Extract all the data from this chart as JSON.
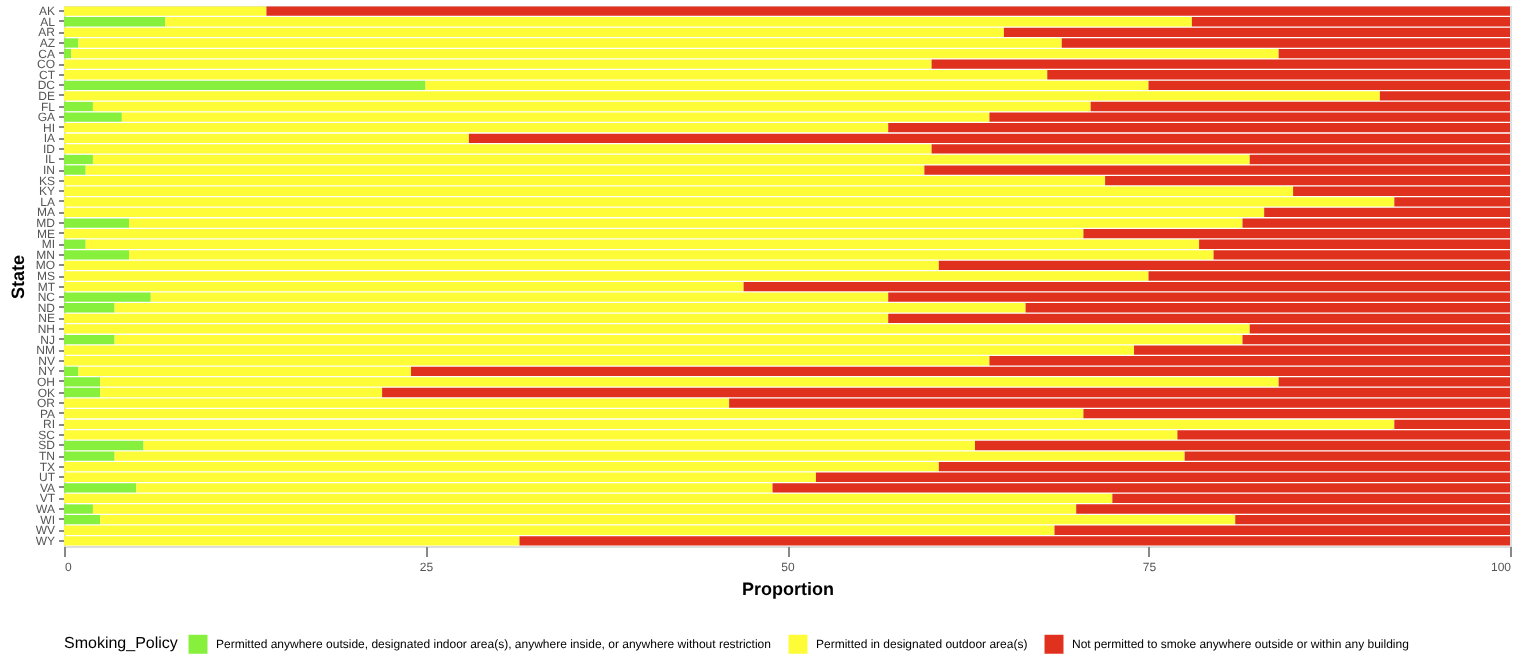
{
  "chart_data": {
    "type": "bar",
    "orientation": "horizontal",
    "stacked": true,
    "xlabel": "Proportion",
    "ylabel": "State",
    "legend_title": "Smoking_Policy",
    "legend": "bottom",
    "grid": false,
    "xlim": [
      0,
      100
    ],
    "xticks": [
      0,
      25,
      50,
      75,
      100
    ],
    "categories": [
      "AK",
      "AL",
      "AR",
      "AZ",
      "CA",
      "CO",
      "CT",
      "DC",
      "DE",
      "FL",
      "GA",
      "HI",
      "IA",
      "ID",
      "IL",
      "IN",
      "KS",
      "KY",
      "LA",
      "MA",
      "MD",
      "ME",
      "MI",
      "MN",
      "MO",
      "MS",
      "MT",
      "NC",
      "ND",
      "NE",
      "NH",
      "NJ",
      "NM",
      "NV",
      "NY",
      "OH",
      "OK",
      "OR",
      "PA",
      "RI",
      "SC",
      "SD",
      "TN",
      "TX",
      "UT",
      "VA",
      "VT",
      "WA",
      "WI",
      "WV",
      "WY"
    ],
    "series": [
      {
        "name": "Permitted anywhere outside, designated indoor area(s), anywhere inside, or anywhere without restriction",
        "color": "#86f03c",
        "values": [
          0,
          7,
          0,
          1,
          0.5,
          0,
          0,
          25,
          0,
          2,
          4,
          0,
          0,
          0,
          2,
          1.5,
          0,
          0,
          0,
          0,
          4.5,
          0,
          1.5,
          4.5,
          0,
          0,
          0,
          6,
          3.5,
          0,
          0,
          3.5,
          0,
          0,
          1,
          2.5,
          2.5,
          0,
          0,
          0,
          0,
          5.5,
          3.5,
          0,
          0,
          5,
          0,
          2,
          2.5,
          0,
          0
        ]
      },
      {
        "name": "Permitted in designated outdoor area(s)",
        "color": "#fefb37",
        "values": [
          14,
          71,
          65,
          68,
          83.5,
          60,
          68,
          50,
          91,
          69,
          60,
          57,
          28,
          60,
          80,
          58,
          72,
          85,
          92,
          83,
          77,
          70.5,
          77,
          75,
          60.5,
          75,
          47,
          51,
          63,
          57,
          82,
          78,
          74,
          64,
          23,
          81.5,
          19.5,
          46,
          70.5,
          92,
          77,
          57.5,
          74,
          60.5,
          52,
          44,
          72.5,
          68,
          78.5,
          68.5,
          31.5
        ]
      },
      {
        "name": "Not permitted to smoke anywhere outside or within any building",
        "color": "#e0301e",
        "values": [
          86,
          22,
          35,
          31,
          16,
          40,
          32,
          25,
          9,
          29,
          36,
          43,
          72,
          40,
          18,
          40.5,
          28,
          15,
          8,
          17,
          18.5,
          29.5,
          21.5,
          20.5,
          39.5,
          25,
          53,
          43,
          33.5,
          43,
          18,
          18.5,
          26,
          36,
          76,
          16,
          78,
          54,
          29.5,
          8,
          23,
          37,
          22.5,
          39.5,
          48,
          51,
          27.5,
          30,
          19,
          31.5,
          68.5
        ]
      }
    ]
  }
}
